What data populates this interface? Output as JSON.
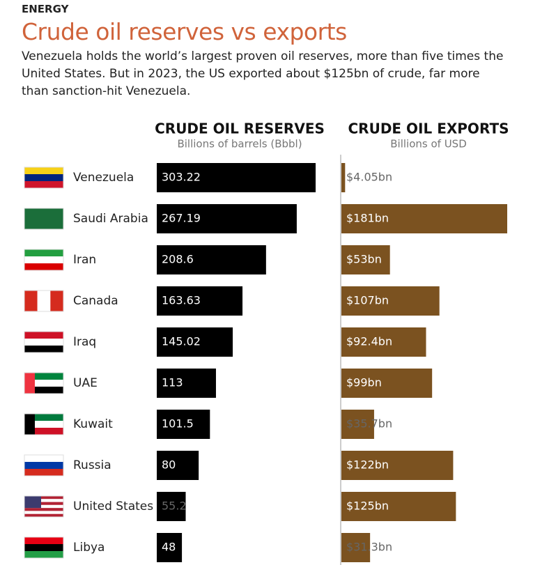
{
  "chart_data": {
    "type": "bar",
    "orientation": "horizontal",
    "kicker": "ENERGY",
    "title": "Crude oil reserves vs exports",
    "subtitle": "Venezuela holds the world’s largest proven oil reserves, more than five times the United States. But in 2023, the US exported about $125bn of crude, far more than sanction-hit Venezuela.",
    "categories": [
      "Venezuela",
      "Saudi Arabia",
      "Iran",
      "Canada",
      "Iraq",
      "UAE",
      "Kuwait",
      "Russia",
      "United States",
      "Libya"
    ],
    "series": [
      {
        "name": "CRUDE OIL RESERVES",
        "subtitle": "Billions of barrels (Bbbl)",
        "color": "#000000",
        "values": [
          303.22,
          267.19,
          208.6,
          163.63,
          145.02,
          113,
          101.5,
          80,
          55.2,
          48
        ]
      },
      {
        "name": "CRUDE OIL EXPORTS",
        "subtitle": "Billions of USD",
        "color": "#7b5220",
        "values": [
          4.05,
          181,
          53,
          107,
          92.4,
          99,
          35.7,
          122,
          125,
          31.3
        ],
        "value_labels": [
          "$4.05bn",
          "$181bn",
          "$53bn",
          "$107bn",
          "$92.4bn",
          "$99bn",
          "$35.7bn",
          "$122bn",
          "$125bn",
          "$31.3bn"
        ]
      }
    ]
  }
}
